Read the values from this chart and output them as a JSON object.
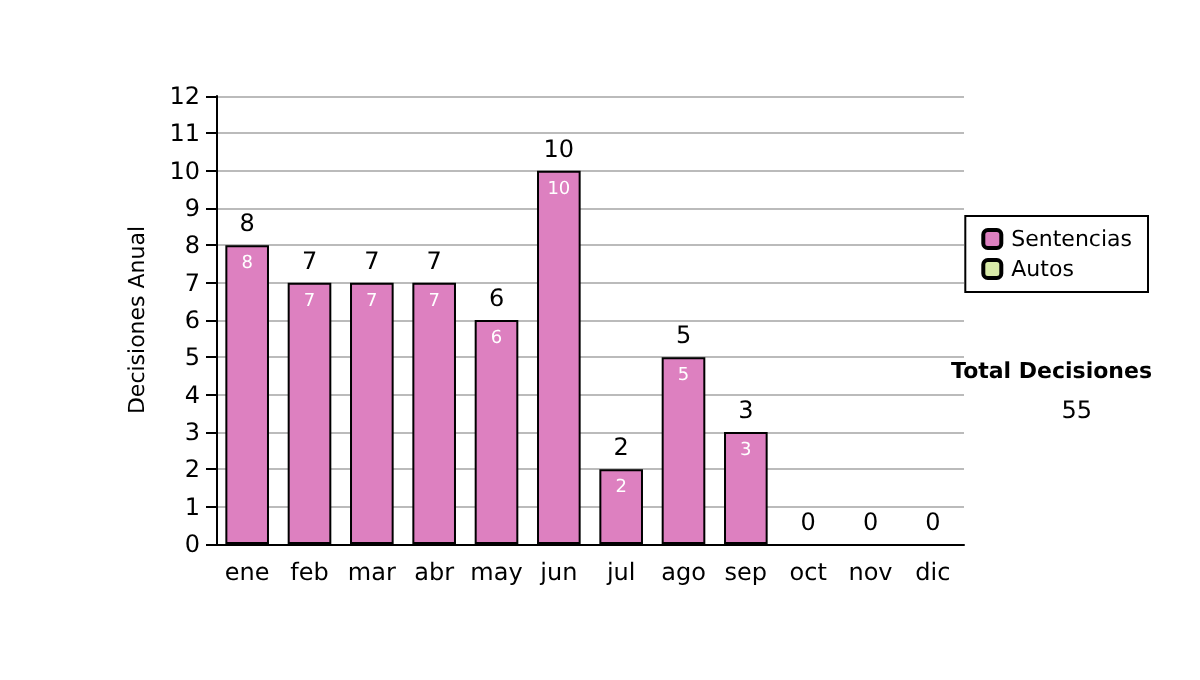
{
  "chart_data": {
    "type": "bar",
    "stacked": true,
    "ylabel": "Decisiones Anual",
    "categories": [
      "ene",
      "feb",
      "mar",
      "abr",
      "may",
      "jun",
      "jul",
      "ago",
      "sep",
      "oct",
      "nov",
      "dic"
    ],
    "series": [
      {
        "name": "Sentencias",
        "color": "#dd80c0",
        "values": [
          8,
          7,
          7,
          7,
          6,
          10,
          2,
          5,
          3,
          0,
          0,
          0
        ],
        "value_labels": [
          "8",
          "7",
          "7",
          "7",
          "6",
          "10",
          "2",
          "5",
          "3",
          null,
          null,
          null
        ]
      },
      {
        "name": "Autos",
        "color": "#d8eaa8",
        "values": [
          0,
          0,
          0,
          0,
          0,
          0,
          0,
          0,
          0,
          0,
          0,
          0
        ]
      }
    ],
    "totals": [
      "8",
      "7",
      "7",
      "7",
      "6",
      "10",
      "2",
      "5",
      "3",
      "0",
      "0",
      "0"
    ],
    "ylim": [
      0,
      12
    ],
    "yticks": [
      0,
      1,
      2,
      3,
      4,
      5,
      6,
      7,
      8,
      9,
      10,
      11,
      12
    ],
    "grid": "y",
    "legend": "right",
    "annotations": [
      "Total Decisiones",
      "55"
    ]
  }
}
